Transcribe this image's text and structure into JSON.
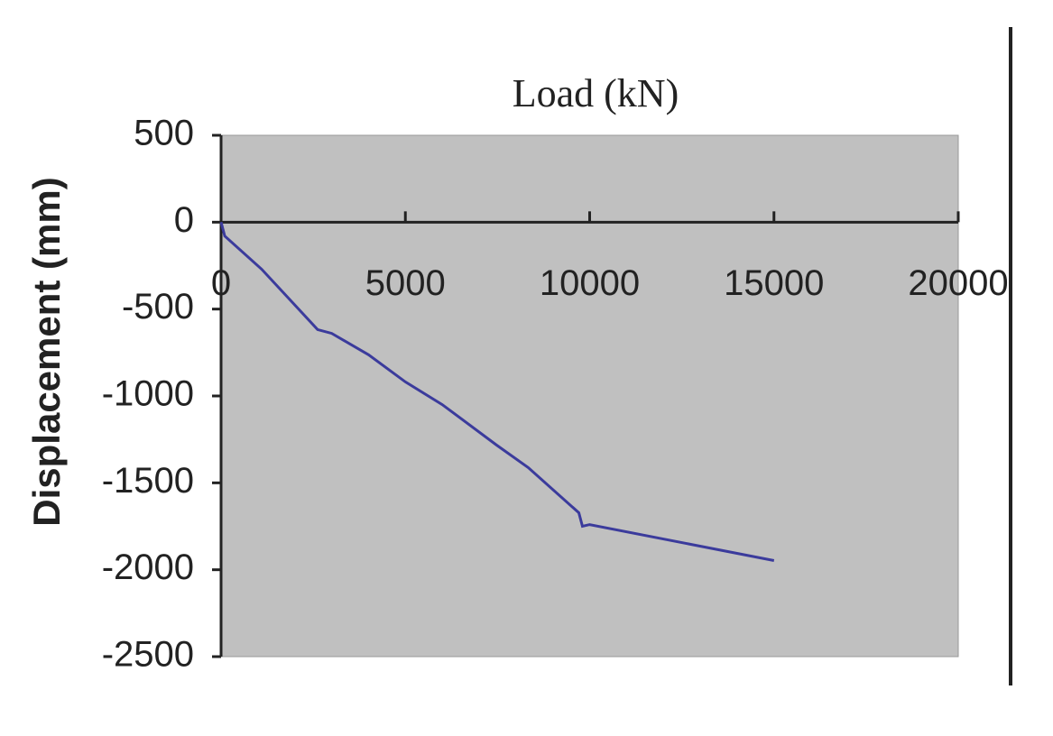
{
  "chart_data": {
    "type": "line",
    "title": "Load (kN)",
    "y_label": "Displacement (mm)",
    "x": [
      0,
      100,
      1100,
      2620,
      3000,
      4000,
      5000,
      6000,
      7475,
      8333,
      9706,
      9804,
      10000,
      15000
    ],
    "series": [
      {
        "name": "Displacement",
        "color": "#3b3b9c",
        "values": [
          0,
          -80,
          -270,
          -618,
          -640,
          -763,
          -919,
          -1050,
          -1283,
          -1412,
          -1672,
          -1750,
          -1740,
          -1947
        ]
      }
    ],
    "xlim": [
      0,
      20000
    ],
    "xticks": [
      0,
      5000,
      10000,
      15000,
      20000
    ],
    "ylim": [
      -2500,
      500
    ],
    "yticks": [
      500,
      0,
      -500,
      -1000,
      -1500,
      -2000,
      -2500
    ],
    "plot_background": "#c0c0c0"
  }
}
